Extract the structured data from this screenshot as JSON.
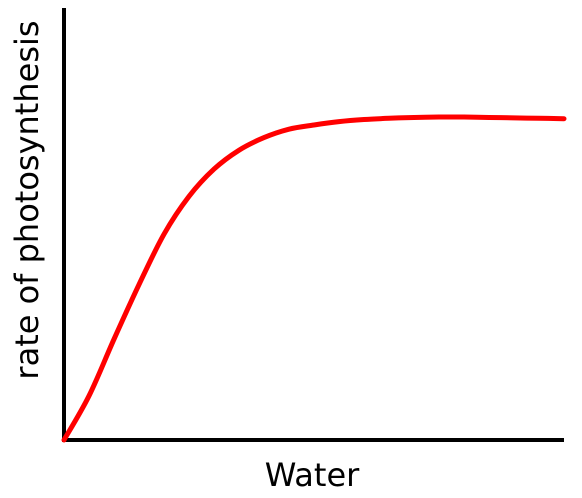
{
  "chart_data": {
    "type": "line",
    "title": "",
    "xlabel": "Water",
    "ylabel": "rate of photosynthesis",
    "grid": false,
    "legend": "none",
    "xlim": [
      0,
      10
    ],
    "ylim": [
      0,
      10
    ],
    "series": [
      {
        "color": "#ff0000",
        "x": [
          0,
          0.5,
          1,
          1.5,
          2,
          2.5,
          3,
          3.5,
          4,
          4.5,
          5,
          5.5,
          6,
          6.5,
          7,
          7.5,
          8,
          8.5,
          9,
          9.5,
          10
        ],
        "y": [
          0,
          1.05,
          2.4,
          3.7,
          4.9,
          5.8,
          6.45,
          6.9,
          7.2,
          7.4,
          7.5,
          7.58,
          7.63,
          7.66,
          7.68,
          7.69,
          7.69,
          7.68,
          7.67,
          7.66,
          7.65
        ]
      }
    ]
  }
}
